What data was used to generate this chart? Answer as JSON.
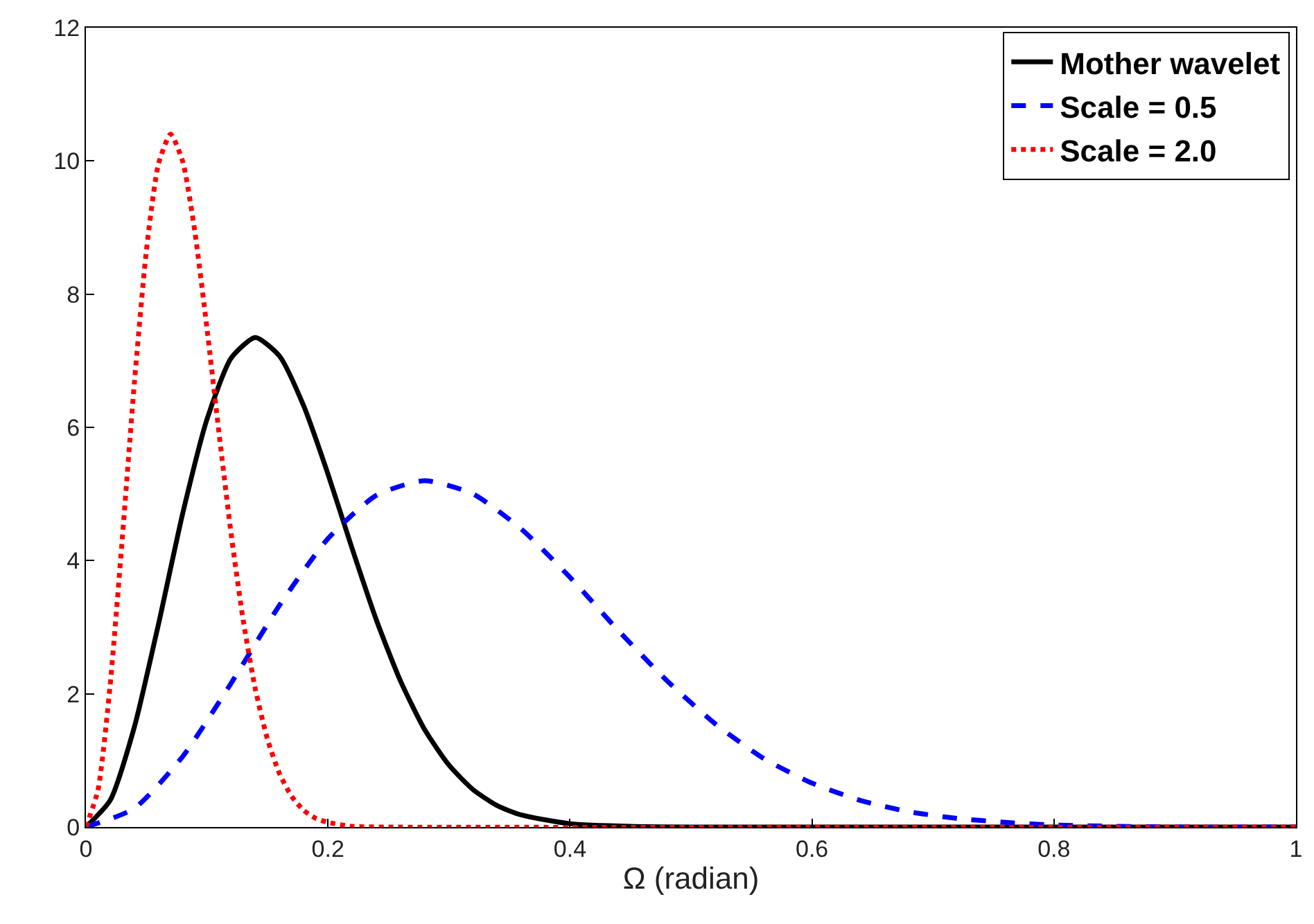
{
  "chart_data": {
    "type": "line",
    "xlabel": "Ω (radian)",
    "xlim": [
      0,
      1
    ],
    "ylim": [
      0,
      12
    ],
    "xticks": [
      0,
      0.2,
      0.4,
      0.6,
      0.8,
      1
    ],
    "yticks": [
      0,
      2,
      4,
      6,
      8,
      10,
      12
    ],
    "legend": "top right",
    "marker": "none",
    "series": [
      {
        "name": "Mother wavelet",
        "color": "#000000",
        "line_style": "solid",
        "x": [
          0,
          0.02,
          0.04,
          0.06,
          0.08,
          0.1,
          0.12,
          0.14,
          0.16,
          0.18,
          0.2,
          0.22,
          0.24,
          0.26,
          0.28,
          0.3,
          0.32,
          0.34,
          0.36,
          0.4,
          0.45,
          0.5,
          1
        ],
        "values": [
          0,
          0.4,
          1.5,
          3.05,
          4.71,
          6.12,
          7.04,
          7.35,
          7.07,
          6.32,
          5.3,
          4.18,
          3.11,
          2.19,
          1.46,
          0.93,
          0.56,
          0.32,
          0.18,
          0.05,
          0.01,
          0,
          0
        ]
      },
      {
        "name": "Scale = 0.5",
        "color": "#0000ff",
        "line_style": "dashed",
        "x": [
          0,
          0.04,
          0.08,
          0.12,
          0.16,
          0.2,
          0.24,
          0.28,
          0.32,
          0.36,
          0.4,
          0.44,
          0.48,
          0.52,
          0.56,
          0.6,
          0.64,
          0.68,
          0.72,
          0.76,
          0.8,
          0.9,
          1
        ],
        "values": [
          0,
          0.28,
          1.06,
          2.16,
          3.33,
          4.33,
          4.98,
          5.2,
          5.0,
          4.47,
          3.75,
          2.95,
          2.2,
          1.55,
          1.03,
          0.66,
          0.4,
          0.23,
          0.13,
          0.07,
          0.03,
          0,
          0
        ]
      },
      {
        "name": "Scale = 2.0",
        "color": "#ff0000",
        "line_style": "dotted",
        "x": [
          0,
          0.01,
          0.02,
          0.03,
          0.04,
          0.05,
          0.06,
          0.07,
          0.08,
          0.09,
          0.1,
          0.11,
          0.12,
          0.13,
          0.14,
          0.15,
          0.16,
          0.17,
          0.18,
          0.19,
          0.2,
          0.22,
          0.25,
          1
        ],
        "values": [
          0,
          0.56,
          2.13,
          4.32,
          6.66,
          8.66,
          9.96,
          10.4,
          9.99,
          8.94,
          7.49,
          5.91,
          4.4,
          3.1,
          2.07,
          1.32,
          0.8,
          0.46,
          0.25,
          0.13,
          0.07,
          0.01,
          0,
          0
        ]
      }
    ]
  }
}
